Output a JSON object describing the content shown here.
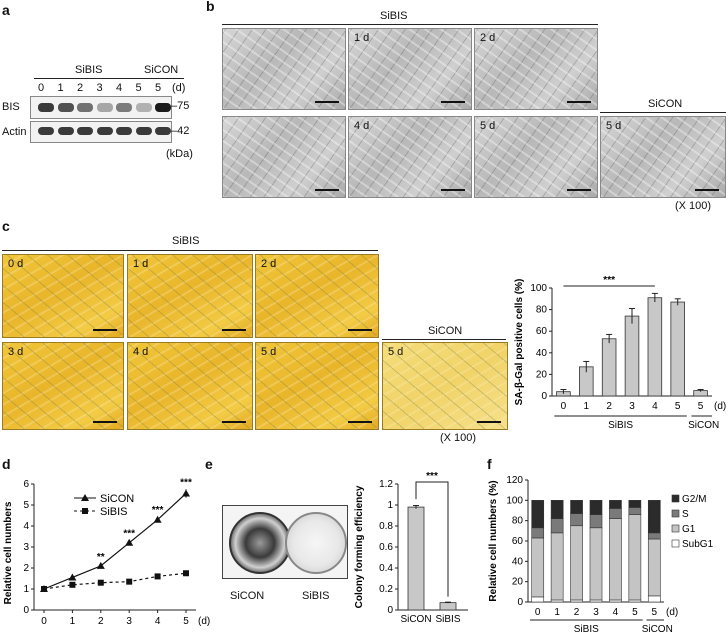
{
  "panels": {
    "a": "a",
    "b": "b",
    "c": "c",
    "d": "d",
    "e": "e",
    "f": "f"
  },
  "a": {
    "group_sibis": "SiBIS",
    "group_sicon": "SiCON",
    "lanes": [
      "0",
      "1",
      "2",
      "3",
      "4",
      "5",
      "5"
    ],
    "unit_d": "(d)",
    "row_bis": "BIS",
    "row_actin": "Actin",
    "marker_75": "–75",
    "marker_42": "–42",
    "unit_kda": "(kDa)",
    "bis_intensity": [
      0.85,
      0.75,
      0.6,
      0.35,
      0.55,
      0.3,
      1.0
    ],
    "actin_intensity": [
      0.85,
      0.85,
      0.85,
      0.85,
      0.85,
      0.85,
      0.85
    ]
  },
  "b": {
    "group_sibis": "SiBIS",
    "group_sicon": "SiCON",
    "tiles": [
      "",
      "1 d",
      "2 d",
      "",
      "4 d",
      "5 d",
      "5 d"
    ],
    "magnification": "(X 100)"
  },
  "c": {
    "group_sibis": "SiBIS",
    "group_sicon": "SiCON",
    "tiles": [
      "0 d",
      "1 d",
      "2 d",
      "3 d",
      "4 d",
      "5 d",
      "5 d"
    ],
    "magnification": "(X 100)"
  },
  "chart_data": [
    {
      "id": "c-bar",
      "type": "bar",
      "ylabel": "SA-β-Gal positive cells (%)",
      "categories": [
        "0",
        "1",
        "2",
        "3",
        "4",
        "5",
        "5"
      ],
      "values": [
        4,
        27,
        53,
        74,
        91,
        87,
        5
      ],
      "errors": [
        2,
        5,
        4,
        7,
        4,
        3,
        1
      ],
      "ylim": [
        0,
        100
      ],
      "yticks": [
        0,
        20,
        40,
        60,
        80,
        100
      ],
      "x_unit": "(d)",
      "group_labels": [
        "SiBIS",
        "SiCON"
      ],
      "significance": "***"
    },
    {
      "id": "d-line",
      "type": "line",
      "ylabel": "Relative cell numbers",
      "x": [
        0,
        1,
        2,
        3,
        4,
        5
      ],
      "x_unit": "(d)",
      "ylim": [
        0,
        6
      ],
      "yticks": [
        0,
        1,
        2,
        3,
        4,
        5,
        6
      ],
      "series": [
        {
          "name": "SiCON",
          "values": [
            1.0,
            1.55,
            2.1,
            3.2,
            4.3,
            5.55
          ],
          "errors": [
            0.05,
            0.1,
            0.1,
            0.12,
            0.12,
            0.2
          ]
        },
        {
          "name": "SiBIS",
          "values": [
            1.0,
            1.2,
            1.3,
            1.35,
            1.6,
            1.75
          ],
          "errors": [
            0.05,
            0.05,
            0.06,
            0.06,
            0.08,
            0.1
          ]
        }
      ],
      "significance": [
        "",
        "",
        "**",
        "***",
        "***",
        "***"
      ]
    },
    {
      "id": "e-bar",
      "type": "bar",
      "ylabel": "Colony forming efficiency",
      "categories": [
        "SiCON",
        "SiBIS"
      ],
      "values": [
        0.98,
        0.07
      ],
      "errors": [
        0.015,
        0.005
      ],
      "ylim": [
        0,
        1.2
      ],
      "yticks": [
        0,
        0.2,
        0.4,
        0.6,
        0.8,
        1.0,
        1.2
      ],
      "ytick_labels": [
        "0",
        "0.2",
        "0.4",
        "0.6",
        "0.8",
        "1",
        "1.2"
      ],
      "significance": "***"
    },
    {
      "id": "f-stacked",
      "type": "bar",
      "ylabel": "Relative cell numbers (%)",
      "categories": [
        "0",
        "1",
        "2",
        "3",
        "4",
        "5",
        "5"
      ],
      "x_unit": "(d)",
      "group_labels": [
        "SiBIS",
        "SiCON"
      ],
      "ylim": [
        0,
        120
      ],
      "yticks": [
        0,
        20,
        40,
        60,
        80,
        100,
        120
      ],
      "series": [
        {
          "name": "SubG1",
          "values": [
            5,
            2,
            2,
            2,
            2,
            2,
            6
          ],
          "color": "#ffffff"
        },
        {
          "name": "G1",
          "values": [
            58,
            66,
            73,
            71,
            80,
            84,
            56
          ],
          "color": "#c4c4c4"
        },
        {
          "name": "S",
          "values": [
            10,
            14,
            12,
            13,
            10,
            7,
            6
          ],
          "color": "#7a7a7a"
        },
        {
          "name": "G2/M",
          "values": [
            27,
            18,
            13,
            14,
            8,
            7,
            32
          ],
          "color": "#2b2b2b"
        }
      ]
    }
  ],
  "e": {
    "dish_labels": [
      "SiCON",
      "SiBIS"
    ]
  }
}
